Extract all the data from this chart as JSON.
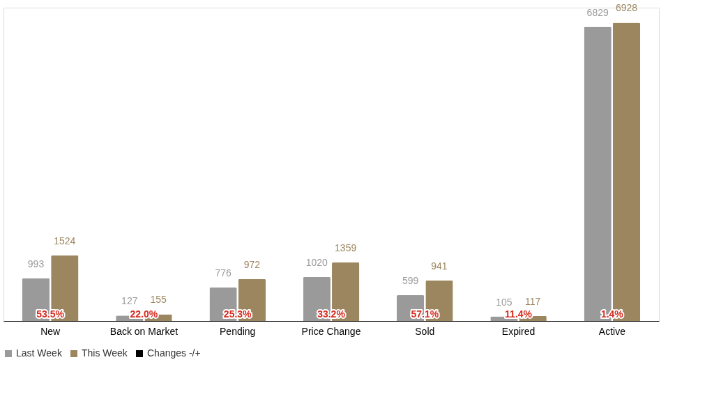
{
  "chart_data": {
    "type": "bar",
    "categories": [
      "New",
      "Back on Market",
      "Pending",
      "Price Change",
      "Sold",
      "Expired",
      "Active"
    ],
    "series": [
      {
        "name": "Last Week",
        "color": "#9a9a9a",
        "values": [
          993,
          127,
          776,
          1020,
          599,
          105,
          6829
        ]
      },
      {
        "name": "This Week",
        "color": "#9c8660",
        "values": [
          1524,
          155,
          972,
          1359,
          941,
          117,
          6928
        ]
      },
      {
        "name": "Changes -/+",
        "type": "line",
        "color": "#000000",
        "values": [
          null,
          null,
          null,
          null,
          null,
          null,
          null
        ],
        "value_labels": [
          "53.5%",
          "22.0%",
          "25.3%",
          "33.2%",
          "57.1%",
          "11.4%",
          "1.4%"
        ]
      }
    ],
    "data_labels": true,
    "legend": "bottom",
    "grid": false
  }
}
